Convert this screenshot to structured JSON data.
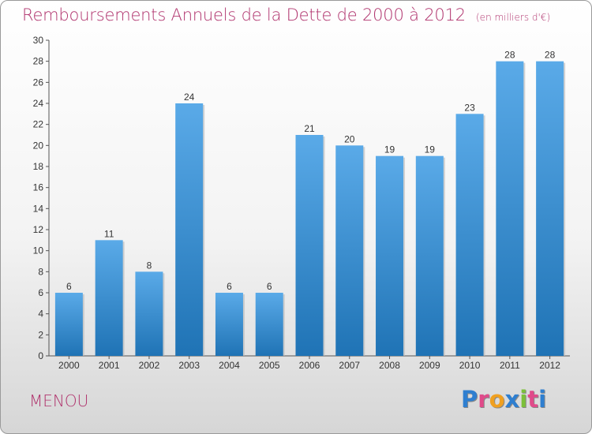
{
  "title": "Remboursements Annuels de la Dette de 2000 à 2012",
  "unit_note": "(en milliers d'€)",
  "location": "MENOU",
  "brand": {
    "text": "Proxiti",
    "colors": [
      "#2f7fd0",
      "#e04b8a",
      "#f0a020",
      "#2f7fd0",
      "#7cc03a",
      "#e04b8a",
      "#2f7fd0"
    ]
  },
  "colors": {
    "title": "#b0336d",
    "bar_light": "#5aaae8",
    "bar_dark": "#1f73b5"
  },
  "chart_data": {
    "type": "bar",
    "categories": [
      "2000",
      "2001",
      "2002",
      "2003",
      "2004",
      "2005",
      "2006",
      "2007",
      "2008",
      "2009",
      "2010",
      "2011",
      "2012"
    ],
    "values": [
      6,
      11,
      8,
      24,
      6,
      6,
      21,
      20,
      19,
      19,
      23,
      28,
      28
    ],
    "ylim": [
      0,
      30
    ],
    "yticks": [
      0,
      2,
      4,
      6,
      8,
      10,
      12,
      14,
      16,
      18,
      20,
      22,
      24,
      26,
      28,
      30
    ],
    "grid": false,
    "data_labels": true
  }
}
